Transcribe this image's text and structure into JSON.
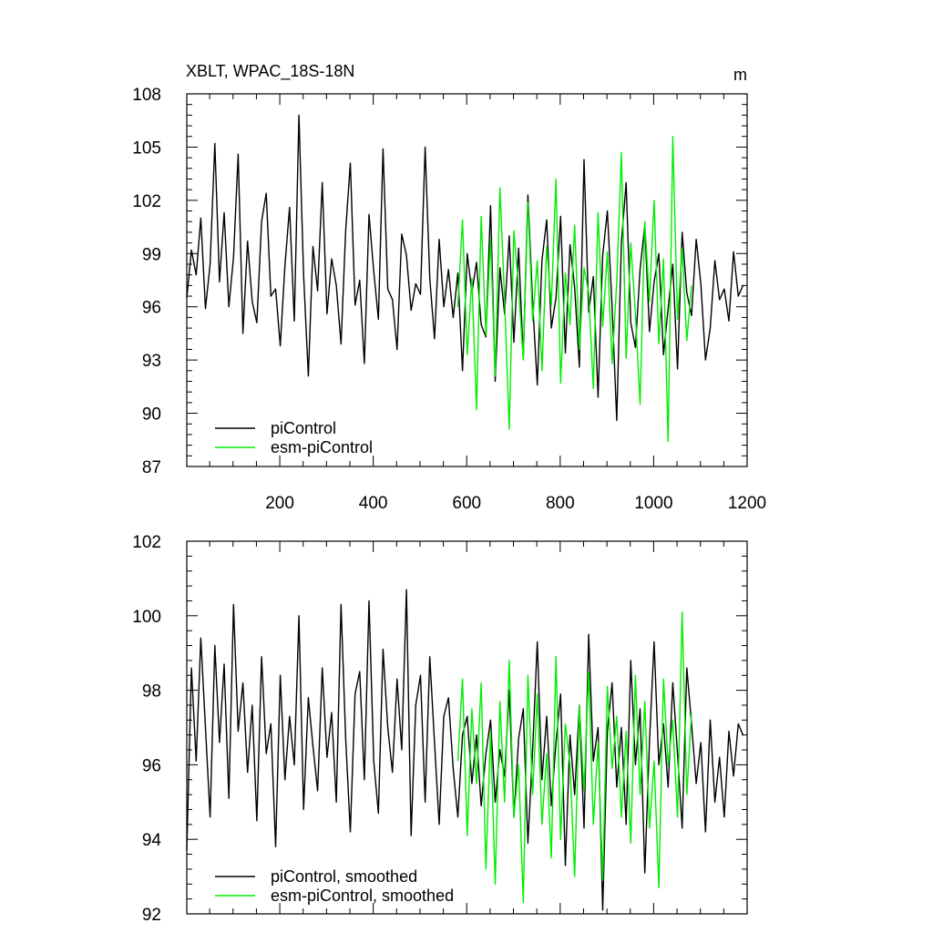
{
  "header": {
    "title": "XBLT, WPAC_18S-18N",
    "unit": "m"
  },
  "chart_data": [
    {
      "type": "line",
      "title": "XBLT, WPAC_18S-18N",
      "xlabel": "",
      "ylabel": "",
      "unit": "m",
      "xlim": [
        1,
        1200
      ],
      "ylim": [
        87,
        108
      ],
      "x_ticks": [
        200,
        400,
        600,
        800,
        1000,
        1200
      ],
      "y_ticks": [
        87,
        90,
        93,
        96,
        99,
        102,
        105,
        108
      ],
      "grid": false,
      "legend_position": "bottom-left",
      "series": [
        {
          "name": "piControl",
          "color": "#000000",
          "x_start": 1,
          "x_step": 10,
          "values": [
            96.5,
            99.2,
            97.8,
            101.0,
            95.9,
            98.4,
            105.2,
            97.4,
            101.3,
            96.0,
            98.8,
            104.6,
            94.5,
            99.7,
            96.3,
            95.1,
            100.8,
            102.4,
            96.6,
            97.0,
            93.8,
            98.3,
            101.6,
            95.2,
            106.8,
            97.8,
            92.1,
            99.4,
            96.9,
            103.0,
            95.6,
            98.7,
            97.2,
            93.9,
            100.3,
            104.1,
            96.1,
            97.5,
            92.8,
            101.2,
            98.0,
            95.3,
            104.9,
            97.0,
            96.4,
            93.6,
            100.1,
            98.9,
            95.8,
            97.3,
            96.7,
            105.0,
            97.6,
            94.2,
            99.8,
            96.0,
            98.1,
            95.4,
            97.9,
            92.4,
            99.0,
            96.8,
            98.5,
            95.0,
            94.3,
            101.7,
            91.8,
            98.2,
            95.6,
            100.0,
            94.0,
            99.3,
            93.1,
            102.3,
            96.2,
            91.6,
            98.6,
            100.9,
            94.8,
            96.5,
            101.1,
            93.4,
            99.5,
            97.1,
            92.6,
            104.3,
            95.7,
            97.7,
            90.9,
            98.9,
            101.4,
            96.0,
            89.6,
            99.6,
            103.0,
            95.1,
            93.7,
            98.1,
            100.6,
            94.6,
            97.4,
            99.0,
            93.3,
            95.9,
            98.4,
            92.5,
            100.2,
            96.8,
            95.5,
            99.8,
            97.3,
            93.0,
            94.8,
            98.6,
            96.4,
            97.0,
            95.2,
            99.1,
            96.6,
            97.2
          ]
        },
        {
          "name": "esm-piControl",
          "color": "#00ee00",
          "x_start": 581,
          "x_step": 10,
          "values": [
            96.0,
            100.9,
            93.3,
            97.6,
            90.2,
            101.1,
            94.4,
            99.8,
            92.1,
            102.7,
            96.4,
            89.1,
            100.3,
            97.0,
            93.0,
            101.9,
            95.2,
            98.6,
            92.4,
            99.4,
            96.1,
            103.2,
            91.7,
            97.9,
            95.0,
            100.6,
            93.6,
            98.2,
            96.8,
            91.4,
            101.3,
            94.9,
            99.1,
            92.8,
            97.4,
            104.7,
            93.1,
            99.6,
            95.6,
            90.5,
            100.8,
            96.3,
            102.0,
            93.9,
            98.7,
            88.4,
            105.6,
            95.3,
            99.3,
            94.1,
            97.2
          ]
        }
      ]
    },
    {
      "type": "line",
      "title": "",
      "xlabel": "",
      "ylabel": "",
      "xlim": [
        1,
        1200
      ],
      "ylim": [
        92,
        102
      ],
      "x_ticks": [
        200,
        400,
        600,
        800,
        1000,
        1200
      ],
      "y_ticks": [
        92,
        94,
        96,
        98,
        100,
        102
      ],
      "grid": false,
      "legend_position": "bottom-left",
      "series": [
        {
          "name": "piControl, smoothed",
          "color": "#000000",
          "x_start": 1,
          "x_step": 10,
          "values": [
            93.7,
            98.6,
            96.1,
            99.4,
            97.0,
            94.6,
            99.2,
            96.6,
            98.7,
            95.1,
            100.3,
            96.9,
            98.2,
            95.8,
            97.6,
            94.5,
            98.9,
            96.3,
            97.1,
            93.8,
            98.4,
            95.6,
            97.3,
            96.0,
            100.0,
            94.8,
            97.8,
            96.5,
            95.3,
            98.6,
            96.2,
            97.4,
            95.0,
            100.3,
            96.7,
            94.2,
            97.9,
            98.5,
            95.6,
            100.4,
            96.1,
            94.7,
            99.1,
            97.0,
            95.8,
            98.3,
            96.4,
            100.7,
            94.1,
            97.6,
            98.4,
            95.0,
            98.9,
            96.6,
            94.4,
            97.3,
            97.8,
            95.9,
            94.6,
            96.8,
            97.3,
            95.5,
            96.8,
            94.9,
            96.3,
            97.2,
            95.0,
            96.4,
            95.7,
            98.0,
            94.6,
            96.7,
            97.5,
            93.9,
            96.4,
            99.3,
            95.6,
            97.3,
            94.9,
            96.6,
            97.9,
            93.3,
            96.8,
            95.2,
            97.6,
            94.3,
            99.5,
            96.1,
            97.0,
            92.1,
            96.9,
            98.2,
            95.4,
            97.0,
            94.4,
            98.8,
            96.0,
            97.5,
            93.1,
            96.6,
            99.3,
            96.0,
            97.1,
            95.4,
            98.2,
            96.3,
            94.3,
            98.6,
            97.1,
            95.5,
            96.6,
            94.2,
            97.2,
            95.0,
            96.2,
            94.6,
            96.9,
            95.7,
            97.1,
            96.8
          ]
        },
        {
          "name": "esm-piControl, smoothed",
          "color": "#00ee00",
          "x_start": 581,
          "x_step": 10,
          "values": [
            96.1,
            98.3,
            94.1,
            97.5,
            95.5,
            98.2,
            93.2,
            96.9,
            92.8,
            97.7,
            95.0,
            98.8,
            94.6,
            96.0,
            92.3,
            98.4,
            95.2,
            97.9,
            94.4,
            96.3,
            93.5,
            98.9,
            94.0,
            97.1,
            96.0,
            93.0,
            97.6,
            95.3,
            98.5,
            94.4,
            96.6,
            92.9,
            98.1,
            95.9,
            97.3,
            94.6,
            96.9,
            93.9,
            98.4,
            95.2,
            97.7,
            94.3,
            96.1,
            92.7,
            98.3,
            96.0,
            97.2,
            94.6,
            100.1,
            95.2,
            97.4
          ]
        }
      ]
    }
  ]
}
